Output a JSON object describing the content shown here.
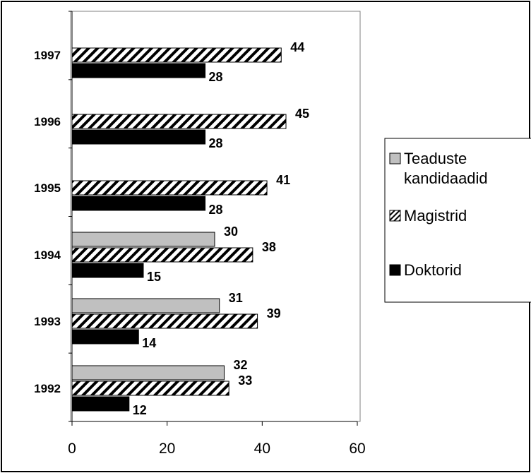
{
  "chart_data": {
    "type": "bar",
    "orientation": "horizontal",
    "categories": [
      "1992",
      "1993",
      "1994",
      "1995",
      "1996",
      "1997"
    ],
    "series": [
      {
        "name": "Teaduste kandidaadid",
        "values": [
          32,
          31,
          30,
          null,
          null,
          null
        ],
        "color": "#c0c0c0",
        "pattern": "solid"
      },
      {
        "name": "Magistrid",
        "values": [
          33,
          39,
          38,
          41,
          45,
          44
        ],
        "color": "#000000",
        "pattern": "diagonal-stripes"
      },
      {
        "name": "Doktorid",
        "values": [
          12,
          14,
          15,
          28,
          28,
          28
        ],
        "color": "#000000",
        "pattern": "solid"
      }
    ],
    "x_ticks": [
      "0",
      "20",
      "40",
      "60"
    ],
    "xlim": [
      0,
      60
    ],
    "title": "",
    "xlabel": "",
    "ylabel": "",
    "grid": false,
    "legend_position": "right",
    "legend": {
      "entries": [
        {
          "lines": [
            "Teaduste",
            "kandidaadid"
          ]
        },
        {
          "lines": [
            "Magistrid"
          ]
        },
        {
          "lines": [
            "Doktorid"
          ]
        }
      ]
    }
  }
}
